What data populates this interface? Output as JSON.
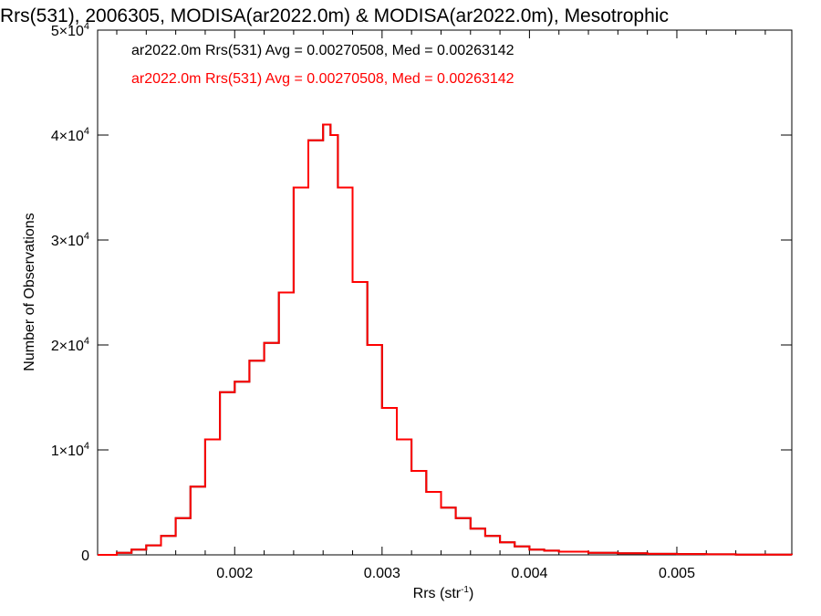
{
  "chart_data": {
    "type": "line",
    "title": "Rrs(531), 2006305, MODISA(ar2022.0m) & MODISA(ar2022.0m), Mesotrophic",
    "xlabel": "Rrs (str",
    "xlabel_sup": "-1",
    "xlabel_close": ")",
    "ylabel": "Number of Observations",
    "xlim": [
      0.00107,
      0.00578
    ],
    "ylim": [
      0,
      50000
    ],
    "x_ticks": [
      {
        "value": 0.002,
        "label": "0.002"
      },
      {
        "value": 0.003,
        "label": "0.003"
      },
      {
        "value": 0.004,
        "label": "0.004"
      },
      {
        "value": 0.005,
        "label": "0.005"
      }
    ],
    "y_ticks": [
      {
        "value": 0,
        "mant": "0",
        "exp": ""
      },
      {
        "value": 10000,
        "mant": "1×10",
        "exp": "4"
      },
      {
        "value": 20000,
        "mant": "2×10",
        "exp": "4"
      },
      {
        "value": 30000,
        "mant": "3×10",
        "exp": "4"
      },
      {
        "value": 40000,
        "mant": "4×10",
        "exp": "4"
      },
      {
        "value": 50000,
        "mant": "5×10",
        "exp": "4"
      }
    ],
    "grid": false,
    "legend_position": "top-left",
    "series": [
      {
        "name": "ar2022.0m Rrs(531) Avg = 0.00270508, Med = 0.00263142",
        "color": "#000000",
        "x": [
          0.00107,
          0.0012,
          0.0013,
          0.0014,
          0.0015,
          0.0016,
          0.0017,
          0.0018,
          0.0019,
          0.002,
          0.0021,
          0.0022,
          0.0023,
          0.0024,
          0.0025,
          0.0026,
          0.00265,
          0.0027,
          0.0028,
          0.0029,
          0.003,
          0.0031,
          0.0032,
          0.0033,
          0.0034,
          0.0035,
          0.0036,
          0.0037,
          0.0038,
          0.0039,
          0.004,
          0.0041,
          0.0042,
          0.0044,
          0.0046,
          0.0048,
          0.005,
          0.0052,
          0.0054,
          0.0056,
          0.00578
        ],
        "y": [
          0,
          200,
          500,
          900,
          1800,
          3500,
          6500,
          11000,
          15500,
          16500,
          18500,
          20200,
          25000,
          35000,
          39500,
          41000,
          40000,
          35000,
          26000,
          20000,
          14000,
          11000,
          8000,
          6000,
          4500,
          3500,
          2500,
          1800,
          1200,
          800,
          500,
          400,
          300,
          200,
          150,
          100,
          80,
          50,
          30,
          20,
          0
        ]
      },
      {
        "name": "ar2022.0m Rrs(531) Avg = 0.00270508, Med = 0.00263142",
        "color": "#ff0000",
        "x": [
          0.00107,
          0.0012,
          0.0013,
          0.0014,
          0.0015,
          0.0016,
          0.0017,
          0.0018,
          0.0019,
          0.002,
          0.0021,
          0.0022,
          0.0023,
          0.0024,
          0.0025,
          0.0026,
          0.00265,
          0.0027,
          0.0028,
          0.0029,
          0.003,
          0.0031,
          0.0032,
          0.0033,
          0.0034,
          0.0035,
          0.0036,
          0.0037,
          0.0038,
          0.0039,
          0.004,
          0.0041,
          0.0042,
          0.0044,
          0.0046,
          0.0048,
          0.005,
          0.0052,
          0.0054,
          0.0056,
          0.00578
        ],
        "y": [
          0,
          200,
          500,
          900,
          1800,
          3500,
          6500,
          11000,
          15500,
          16500,
          18500,
          20200,
          25000,
          35000,
          39500,
          41000,
          40000,
          35000,
          26000,
          20000,
          14000,
          11000,
          8000,
          6000,
          4500,
          3500,
          2500,
          1800,
          1200,
          800,
          500,
          400,
          300,
          200,
          150,
          100,
          80,
          50,
          30,
          20,
          0
        ]
      }
    ]
  }
}
